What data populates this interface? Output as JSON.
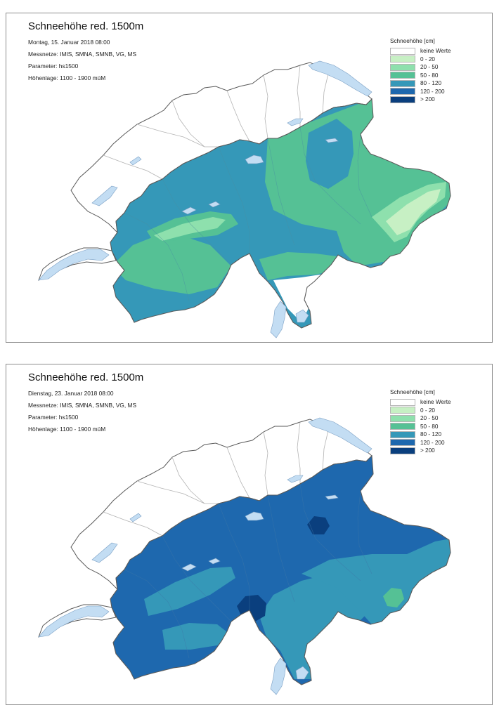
{
  "maps": [
    {
      "title": "Schneehöhe red. 1500m",
      "date": "Montag, 15. Januar 2018 08:00",
      "networks": "Messnetze: IMIS, SMNA, SMNB, VG, MS",
      "parameter": "Parameter: hs1500",
      "altitude": "Höhenlage: 1100 - 1900 müM"
    },
    {
      "title": "Schneehöhe red. 1500m",
      "date": "Dienstag, 23. Januar 2018 08:00",
      "networks": "Messnetze: IMIS, SMNA, SMNB, VG, MS",
      "parameter": "Parameter: hs1500",
      "altitude": "Höhenlage: 1100 - 1900 müM"
    }
  ],
  "legend": {
    "title": "Schneehöhe [cm]",
    "classes": [
      {
        "label": "keine Werte",
        "color": "#ffffff"
      },
      {
        "label": "0 - 20",
        "color": "#c7f0c4"
      },
      {
        "label": "20 - 50",
        "color": "#8ee0ad"
      },
      {
        "label": "50 - 80",
        "color": "#55c195"
      },
      {
        "label": "80 - 120",
        "color": "#3598b8"
      },
      {
        "label": "120 - 200",
        "color": "#1e68ae"
      },
      {
        "label": "> 200",
        "color": "#0a3f7e"
      }
    ]
  },
  "colors": {
    "lake": "#c3ddf3",
    "border": "#5a5a5a"
  }
}
